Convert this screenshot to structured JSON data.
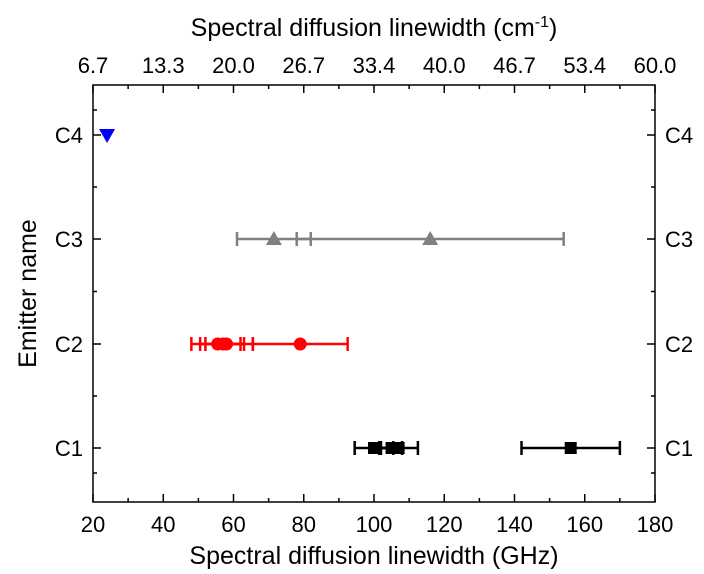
{
  "chart_data": {
    "type": "scatter",
    "title": "",
    "xlabel": "Spectral diffusion linewidth (GHz)",
    "ylabel": "Emitter name",
    "xlim": [
      20,
      180
    ],
    "xticks": [
      20,
      40,
      60,
      80,
      100,
      120,
      140,
      160,
      180
    ],
    "categories": [
      "C1",
      "C2",
      "C3",
      "C4"
    ],
    "top_axis": {
      "label_prefix": "Spectral diffusion linewidth (cm",
      "label_superscript": "-1",
      "label_suffix": ")",
      "tick_labels": [
        "6.7",
        "13.3",
        "20.0",
        "26.7",
        "33.4",
        "40.0",
        "46.7",
        "53.4",
        "60.0"
      ],
      "tick_positions_ghz": [
        20,
        40,
        60,
        80,
        100,
        120,
        140,
        160,
        180
      ]
    },
    "grid": false,
    "legend": "none",
    "series": [
      {
        "category": "C1",
        "marker": "square",
        "color": "#000000",
        "points": [
          {
            "x": 100,
            "err": 5.5
          },
          {
            "x": 105,
            "err": 3
          },
          {
            "x": 107,
            "err": 5.5
          },
          {
            "x": 156,
            "err": 14
          }
        ]
      },
      {
        "category": "C2",
        "marker": "circle",
        "color": "#ff0000",
        "points": [
          {
            "x": 55.5,
            "err": 7.5
          },
          {
            "x": 57,
            "err": 5
          },
          {
            "x": 58,
            "err": 7.5
          },
          {
            "x": 79,
            "err": 13.5
          }
        ]
      },
      {
        "category": "C3",
        "marker": "triangle-up",
        "color": "#808080",
        "points": [
          {
            "x": 71.5,
            "err": 10.5
          },
          {
            "x": 116,
            "err": 38
          }
        ]
      },
      {
        "category": "C4",
        "marker": "triangle-down",
        "color": "#0000ff",
        "points": [
          {
            "x": 24,
            "err": 0
          }
        ]
      }
    ]
  }
}
